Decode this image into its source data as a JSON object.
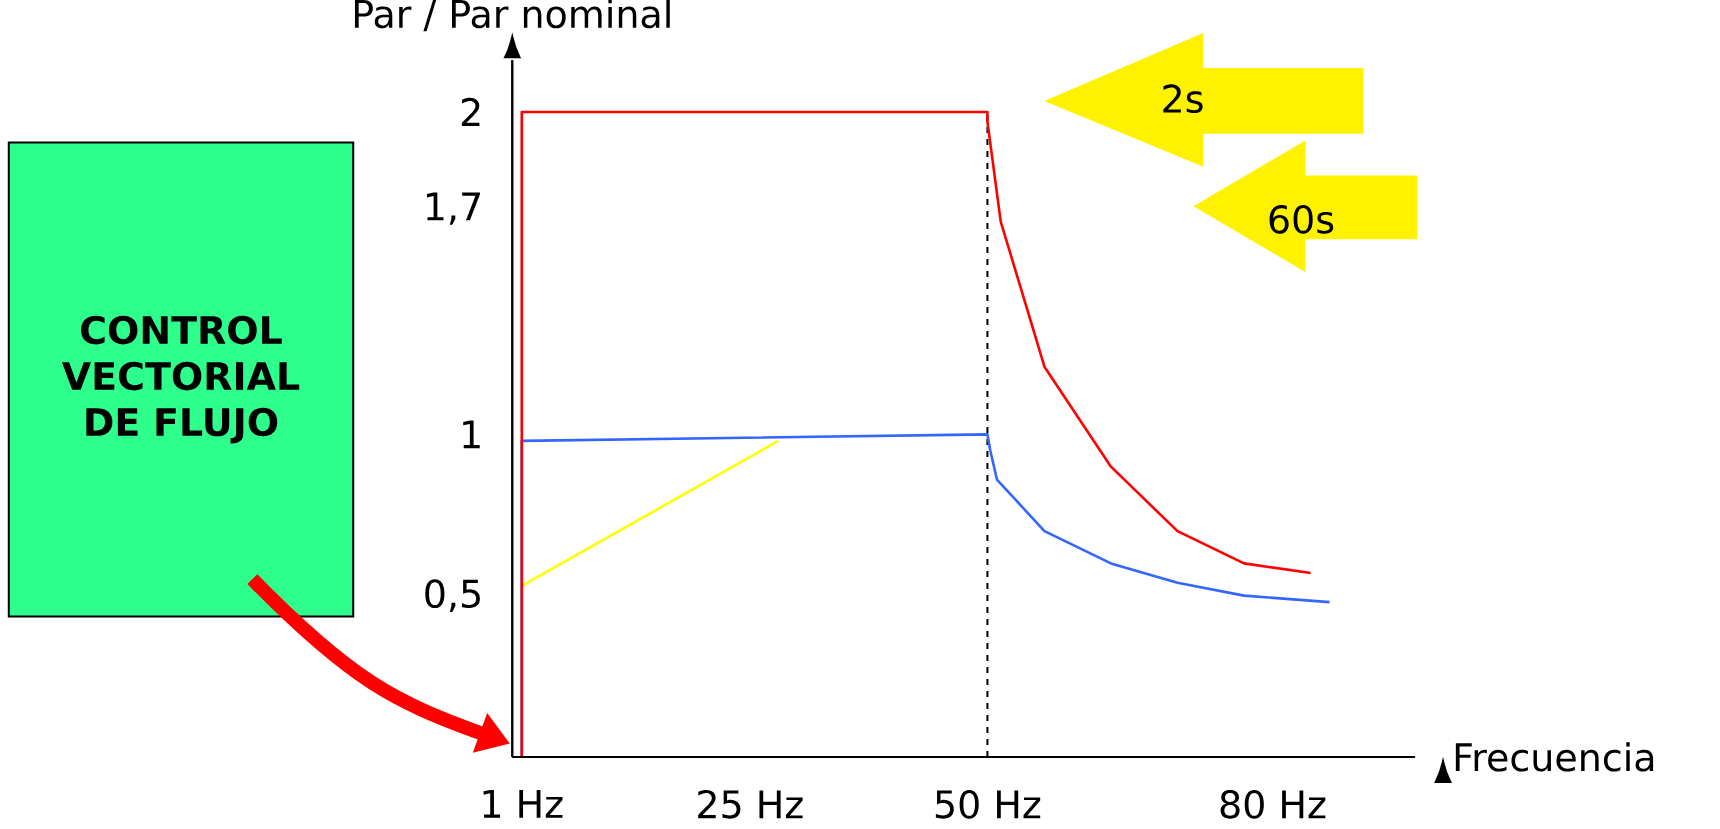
{
  "chart_data": {
    "type": "line",
    "xlabel": "Frecuencia",
    "ylabel": "Par / Par nominal",
    "xlim": [
      0,
      95
    ],
    "ylim": [
      0,
      2.16
    ],
    "xticks": [
      {
        "value": 1,
        "label": "1 Hz"
      },
      {
        "value": 25,
        "label": "25 Hz"
      },
      {
        "value": 50,
        "label": "50 Hz"
      },
      {
        "value": 80,
        "label": "80 Hz"
      }
    ],
    "yticks": [
      {
        "value": 0.5,
        "label": "0,5"
      },
      {
        "value": 1,
        "label": "1"
      },
      {
        "value": 1.7,
        "label": "1,7"
      },
      {
        "value": 2,
        "label": "2"
      }
    ],
    "series": [
      {
        "color": "#ff0000",
        "x": [
          1,
          1,
          50,
          50,
          51.4,
          56,
          63,
          70,
          77,
          84
        ],
        "values": [
          0,
          2,
          2,
          1.97,
          1.66,
          1.21,
          0.9,
          0.7,
          0.6,
          0.57
        ]
      },
      {
        "color": "#3366ff",
        "x": [
          1,
          1,
          50,
          50.3,
          51,
          56,
          63,
          70,
          77,
          86
        ],
        "values": [
          0,
          0.98,
          1.0,
          0.95,
          0.86,
          0.7,
          0.6,
          0.54,
          0.5,
          0.48
        ]
      },
      {
        "color": "#ffff00",
        "x": [
          1,
          28
        ],
        "values": [
          0.53,
          0.98
        ]
      }
    ],
    "ref_lines": [
      {
        "axis": "x",
        "value": 50,
        "line_style": "dashed",
        "color": "#000000"
      }
    ],
    "annotations": [
      "2s",
      "60s",
      "CONTROL VECTORIAL DE FLUJO"
    ],
    "grid": false,
    "legend": false,
    "marker": "none",
    "line_style": "solid"
  }
}
